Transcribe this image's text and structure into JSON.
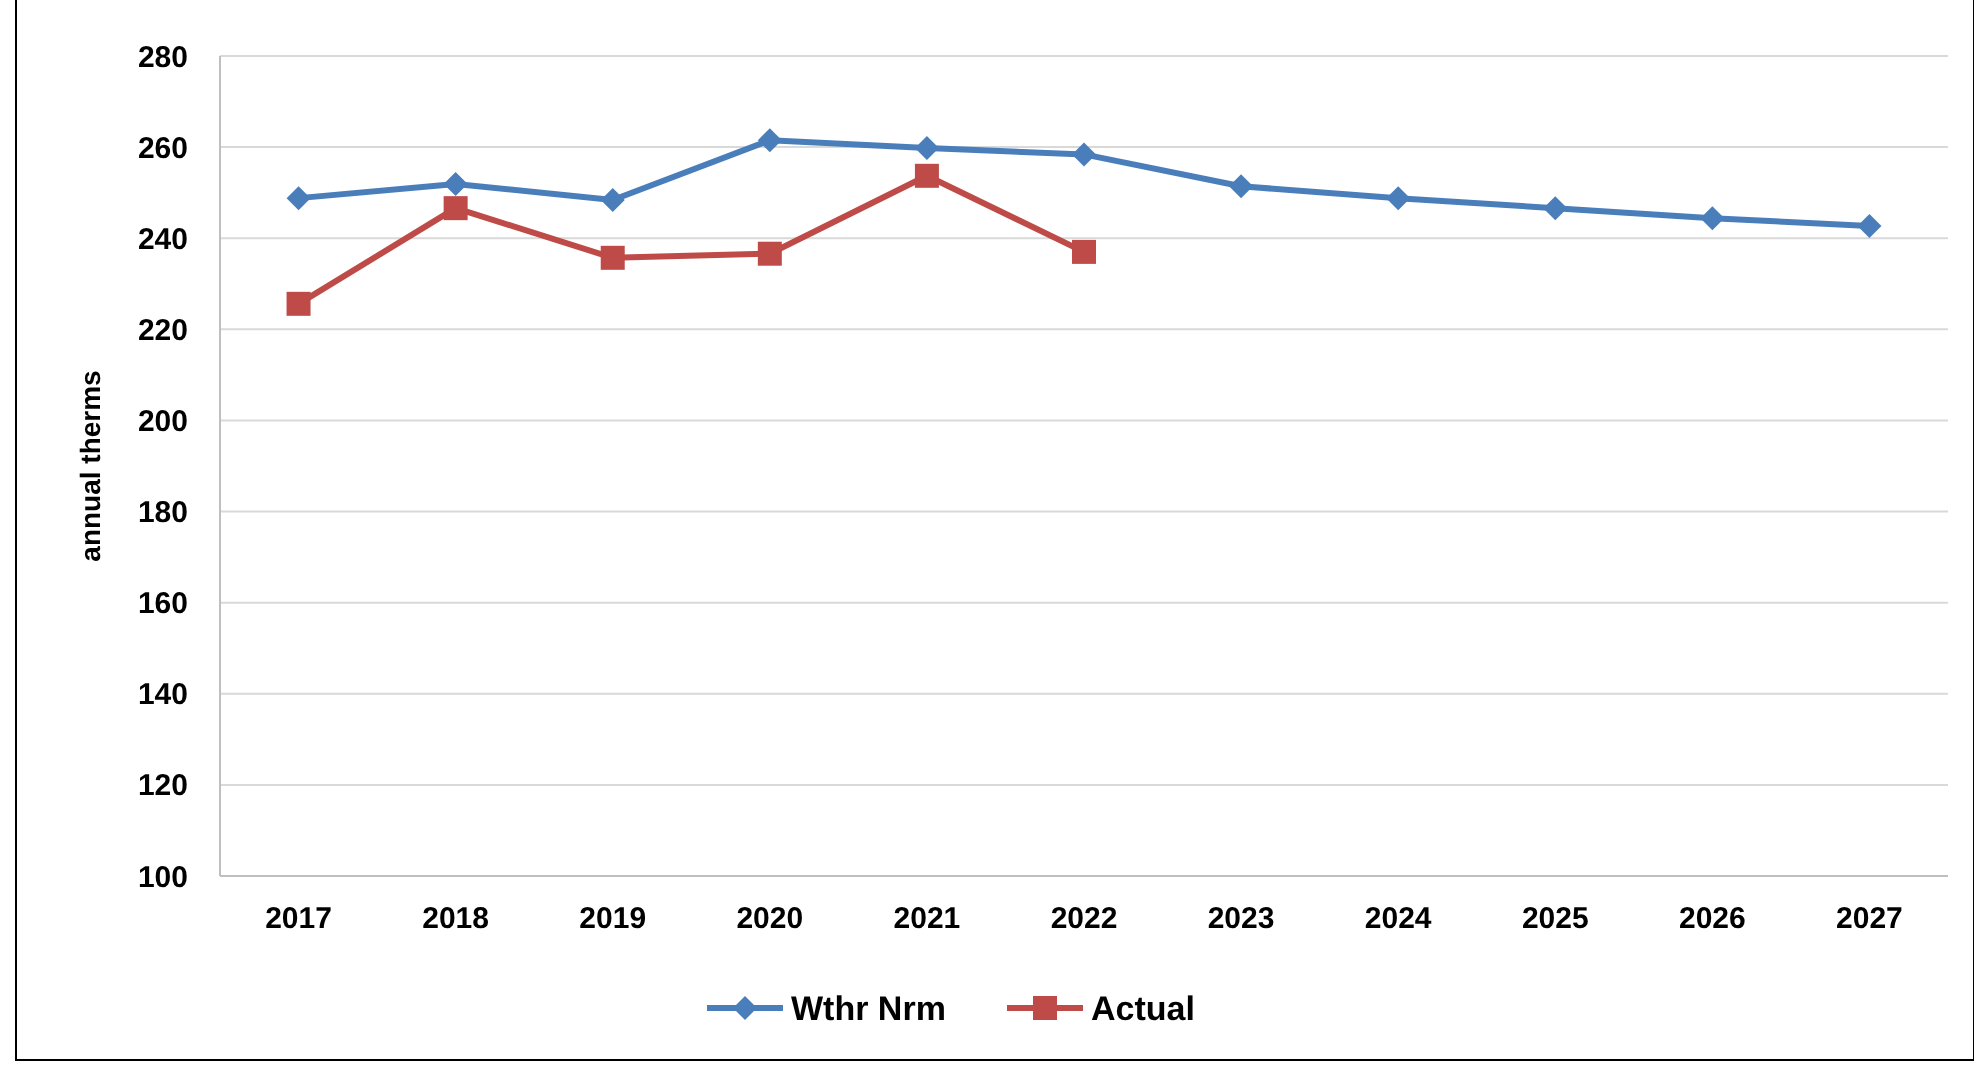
{
  "chart_data": {
    "type": "line",
    "ylabel": "annual therms",
    "categories": [
      "2017",
      "2018",
      "2019",
      "2020",
      "2021",
      "2022",
      "2023",
      "2024",
      "2025",
      "2026",
      "2027"
    ],
    "series": [
      {
        "name": "Wthr Nrm",
        "color": "#4a7ebb",
        "marker": "diamond",
        "values": [
          248.8,
          251.9,
          248.4,
          261.5,
          259.8,
          258.4,
          251.4,
          248.8,
          246.6,
          244.4,
          242.7
        ]
      },
      {
        "name": "Actual",
        "color": "#be4b48",
        "marker": "square",
        "values": [
          225.6,
          246.6,
          235.7,
          236.6,
          253.7,
          237.0,
          null,
          null,
          null,
          null,
          null
        ]
      }
    ],
    "ylim": [
      100,
      280
    ],
    "yticks": [
      100,
      120,
      140,
      160,
      180,
      200,
      220,
      240,
      260,
      280
    ],
    "grid": "y",
    "legend": "bottom"
  }
}
